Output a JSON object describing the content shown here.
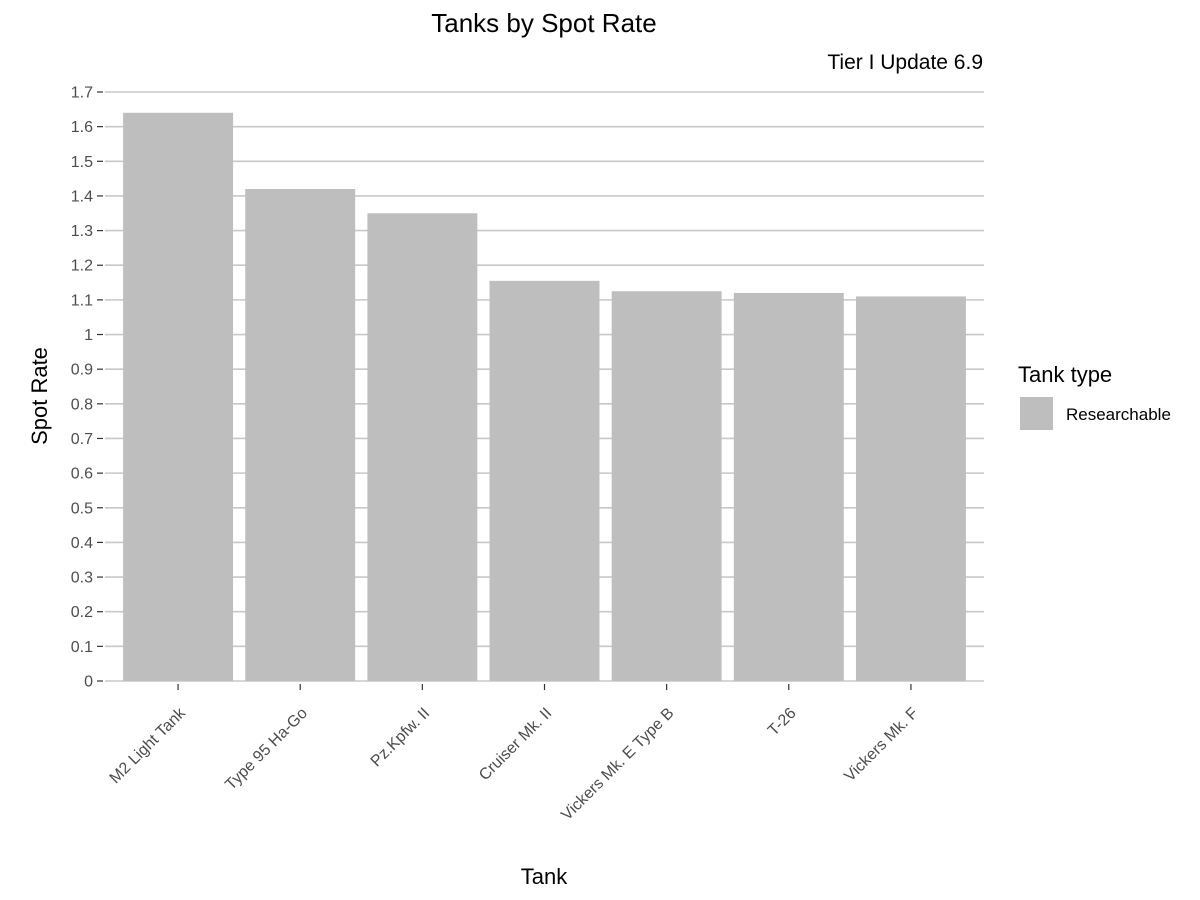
{
  "chart_data": {
    "type": "bar",
    "title": "Tanks by Spot Rate",
    "subtitle": "Tier I Update 6.9",
    "xlabel": "Tank",
    "ylabel": "Spot Rate",
    "categories": [
      "M2 Light Tank",
      "Type 95 Ha-Go",
      "Pz.Kpfw. II",
      "Cruiser Mk. II",
      "Vickers Mk. E Type B",
      "T-26",
      "Vickers Mk. F"
    ],
    "series": [
      {
        "name": "Researchable",
        "values": [
          1.64,
          1.42,
          1.35,
          1.155,
          1.125,
          1.12,
          1.11
        ]
      }
    ],
    "ylim": [
      0,
      1.7
    ],
    "yticks": [
      0,
      0.1,
      0.2,
      0.3,
      0.4,
      0.5,
      0.6,
      0.7,
      0.8,
      0.9,
      1,
      1.1,
      1.2,
      1.3,
      1.4,
      1.5,
      1.6,
      1.7
    ],
    "ytick_labels": [
      "0",
      "0.1",
      "0.2",
      "0.3",
      "0.4",
      "0.5",
      "0.6",
      "0.7",
      "0.8",
      "0.9",
      "1",
      "1.1",
      "1.2",
      "1.3",
      "1.4",
      "1.5",
      "1.6",
      "1.7"
    ],
    "grid": true,
    "legend": {
      "title": "Tank type",
      "placement": "right"
    },
    "colors": {
      "bar": "#bebebe",
      "grid": "#c8c8c8",
      "tick": "#333333"
    }
  }
}
